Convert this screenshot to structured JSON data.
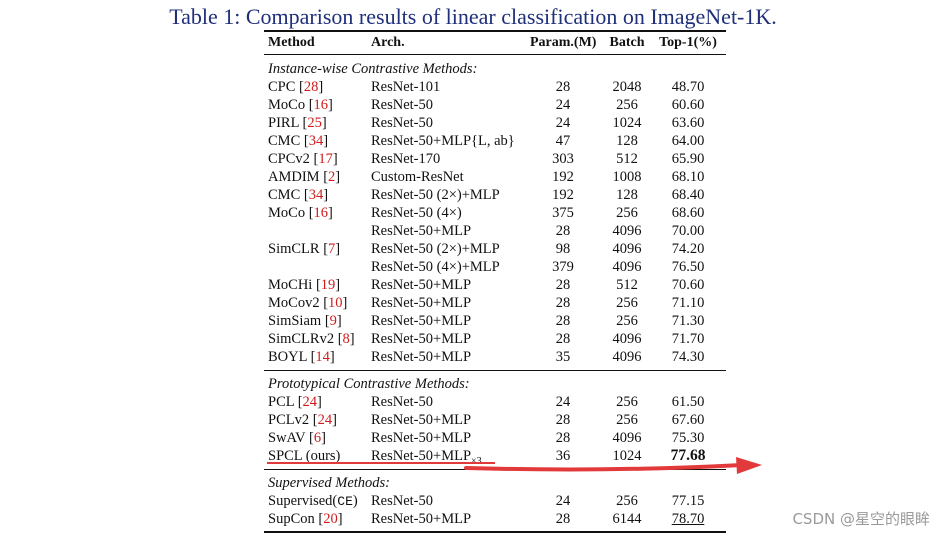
{
  "caption": "Table 1: Comparison results of linear classification on ImageNet-1K.",
  "table": {
    "headers": {
      "method": "Method",
      "arch": "Arch.",
      "param": "Param.(M)",
      "batch": "Batch",
      "top1": "Top-1(%)"
    },
    "sections": [
      {
        "title": "Instance-wise Contrastive Methods:",
        "rows": [
          {
            "method": "CPC ",
            "ref": "28",
            "arch": "ResNet-101",
            "param": "28",
            "batch": "2048",
            "top1": "48.70"
          },
          {
            "method": "MoCo ",
            "ref": "16",
            "arch": "ResNet-50",
            "param": "24",
            "batch": "256",
            "top1": "60.60"
          },
          {
            "method": "PIRL ",
            "ref": "25",
            "arch": "ResNet-50",
            "param": "24",
            "batch": "1024",
            "top1": "63.60"
          },
          {
            "method": "CMC ",
            "ref": "34",
            "arch": "ResNet-50+MLP{L, ab}",
            "param": "47",
            "batch": "128",
            "top1": "64.00"
          },
          {
            "method": "CPCv2 ",
            "ref": "17",
            "arch": "ResNet-170",
            "param": "303",
            "batch": "512",
            "top1": "65.90"
          },
          {
            "method": "AMDIM ",
            "ref": "2",
            "arch": "Custom-ResNet",
            "param": "192",
            "batch": "1008",
            "top1": "68.10"
          },
          {
            "method": "CMC ",
            "ref": "34",
            "arch": "ResNet-50 (2×)+MLP",
            "param": "192",
            "batch": "128",
            "top1": "68.40"
          },
          {
            "method": "MoCo ",
            "ref": "16",
            "arch": "ResNet-50 (4×)",
            "param": "375",
            "batch": "256",
            "top1": "68.60"
          },
          {
            "method": "",
            "ref": "",
            "arch": "ResNet-50+MLP",
            "param": "28",
            "batch": "4096",
            "top1": "70.00"
          },
          {
            "method": "SimCLR ",
            "ref": "7",
            "arch": "ResNet-50 (2×)+MLP",
            "param": "98",
            "batch": "4096",
            "top1": "74.20"
          },
          {
            "method": "",
            "ref": "",
            "arch": "ResNet-50 (4×)+MLP",
            "param": "379",
            "batch": "4096",
            "top1": "76.50"
          },
          {
            "method": "MoCHi ",
            "ref": "19",
            "arch": "ResNet-50+MLP",
            "param": "28",
            "batch": "512",
            "top1": "70.60"
          },
          {
            "method": "MoCov2 ",
            "ref": "10",
            "arch": "ResNet-50+MLP",
            "param": "28",
            "batch": "256",
            "top1": "71.10"
          },
          {
            "method": "SimSiam ",
            "ref": "9",
            "arch": "ResNet-50+MLP",
            "param": "28",
            "batch": "256",
            "top1": "71.30"
          },
          {
            "method": "SimCLRv2 ",
            "ref": "8",
            "arch": "ResNet-50+MLP",
            "param": "28",
            "batch": "4096",
            "top1": "71.70"
          },
          {
            "method": "BOYL ",
            "ref": "14",
            "arch": "ResNet-50+MLP",
            "param": "35",
            "batch": "4096",
            "top1": "74.30"
          }
        ]
      },
      {
        "title": "Prototypical Contrastive Methods:",
        "rows": [
          {
            "method": "PCL ",
            "ref": "24",
            "arch": "ResNet-50",
            "param": "24",
            "batch": "256",
            "top1": "61.50"
          },
          {
            "method": "PCLv2 ",
            "ref": "24",
            "arch": "ResNet-50+MLP",
            "param": "28",
            "batch": "256",
            "top1": "67.60"
          },
          {
            "method": "SwAV ",
            "ref": "6",
            "arch": "ResNet-50+MLP",
            "param": "28",
            "batch": "4096",
            "top1": "75.30"
          },
          {
            "method": "SPCL (ours)",
            "ref": "",
            "arch": "ResNet-50+MLP",
            "arch_sub": "×3",
            "param": "36",
            "batch": "1024",
            "top1": "77.68",
            "top1_style": "bold"
          }
        ]
      },
      {
        "title": "Supervised Methods:",
        "rows": [
          {
            "method": "Supervised(",
            "method_mono": "CE",
            "method_tail": ")",
            "ref": "",
            "arch": "ResNet-50",
            "param": "24",
            "batch": "256",
            "top1": "77.15"
          },
          {
            "method": "SupCon ",
            "ref": "20",
            "arch": "ResNet-50+MLP",
            "param": "28",
            "batch": "6144",
            "top1": "78.70",
            "top1_style": "underline"
          }
        ]
      }
    ]
  },
  "annotation": {
    "highlight_color": "#e23a3a"
  },
  "watermark": "CSDN @星空的眼眸"
}
